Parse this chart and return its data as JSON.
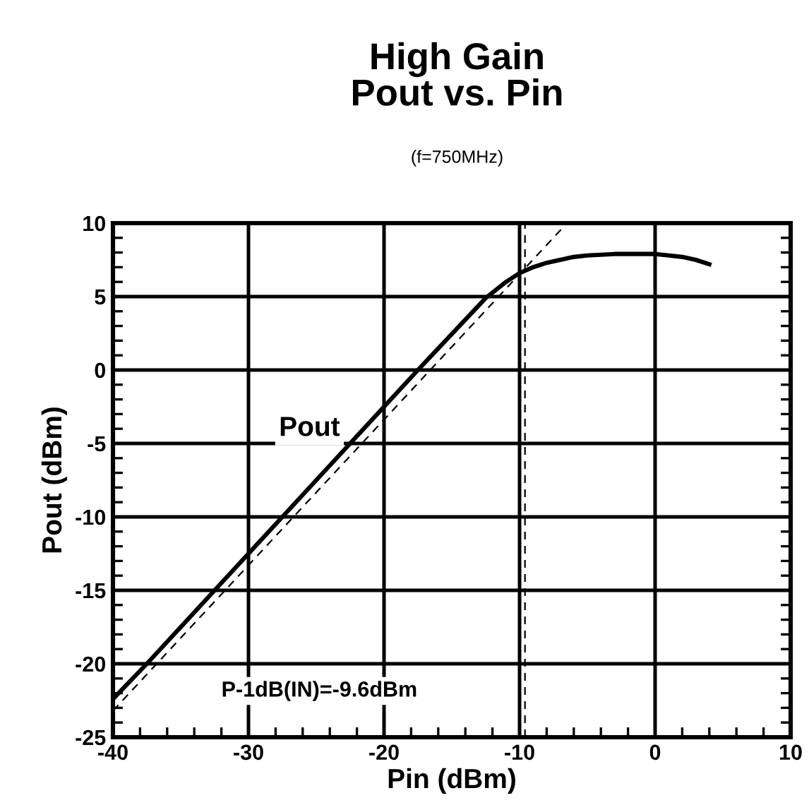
{
  "chart_data": {
    "type": "line",
    "title": "High Gain\nPout vs. Pin",
    "subtitle": "(f=750MHz)",
    "xlabel": "Pin (dBm)",
    "ylabel": "Pout (dBm)",
    "xlim": [
      -40,
      10
    ],
    "ylim": [
      -25,
      10
    ],
    "xticks": [
      -40,
      -30,
      -20,
      -10,
      0,
      10
    ],
    "yticks": [
      -25,
      -20,
      -15,
      -10,
      -5,
      0,
      5,
      10
    ],
    "grid": true,
    "legend": false,
    "series": [
      {
        "color": "#000000",
        "line_style": "solid",
        "x": [
          -40,
          -37.5,
          -32.5,
          -27.5,
          -22.5,
          -17.5,
          -12.5,
          -11,
          -10,
          -9,
          -8,
          -7,
          -6,
          -5,
          -3,
          -1,
          0,
          1,
          2,
          3,
          4
        ],
        "values": [
          -22.4,
          -20,
          -15,
          -10,
          -5,
          0,
          4.9,
          6,
          6.6,
          7.0,
          7.3,
          7.5,
          7.7,
          7.8,
          7.9,
          7.9,
          7.9,
          7.8,
          7.7,
          7.5,
          7.2
        ]
      },
      {
        "color": "#000000",
        "line_style": "dashed",
        "x": [
          -40,
          -6.5
        ],
        "values": [
          -23.2,
          10
        ]
      }
    ],
    "ref_lines": [
      {
        "axis": "x",
        "value": -9.6,
        "line_style": "dashed",
        "color": "#000000"
      }
    ],
    "annotations": [
      "Pout",
      "P-1dB(IN)=-9.6dBm"
    ]
  }
}
